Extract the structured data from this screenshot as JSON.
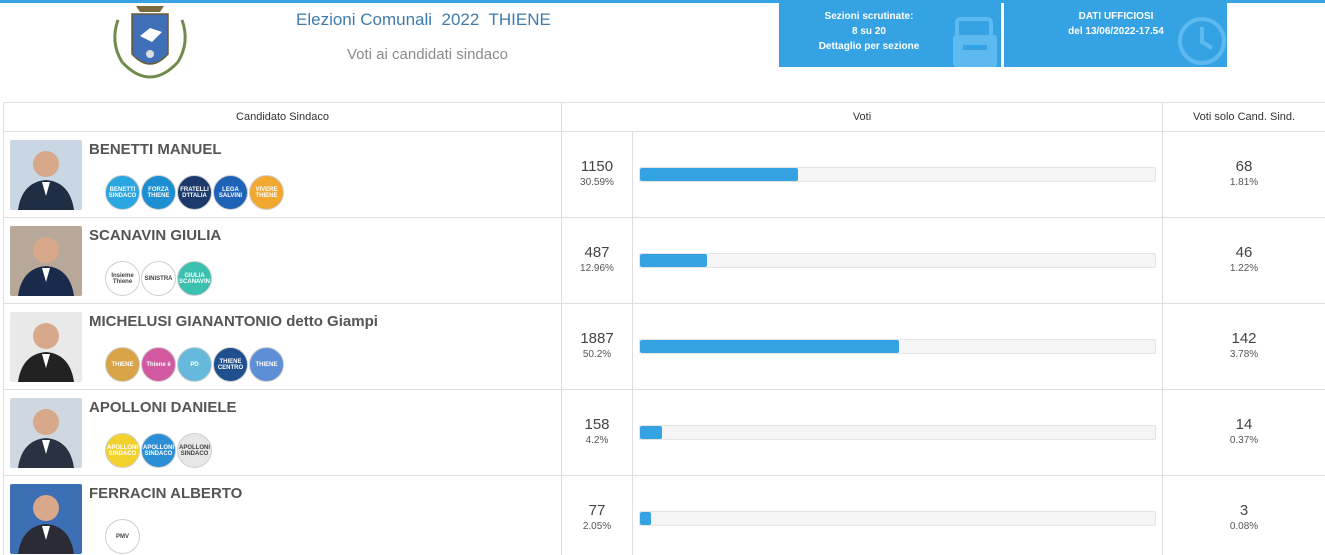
{
  "header": {
    "title": "Elezioni Comunali  2022  THIENE",
    "subtitle": "Voti ai candidati sindaco"
  },
  "info_boxes": {
    "sezioni_label": "Sezioni scrutinate:",
    "sezioni_value": "8 su 20",
    "sezioni_link": "Dettaglio per sezione",
    "dati_label": "DATI UFFICIOSI",
    "dati_value": "del 13/06/2022-17.54"
  },
  "colors": {
    "accent": "#35a3e3",
    "title": "#3f7cad"
  },
  "table": {
    "headers": [
      "Candidato Sindaco",
      "Voti",
      "Voti solo Cand. Sind."
    ],
    "rows": [
      {
        "name": "BENETTI MANUEL",
        "votes": "1150",
        "pct": "30.59%",
        "fraction": 0.3059,
        "solo_votes": "68",
        "solo_pct": "1.81%",
        "photo_bg": "#c9d6e3",
        "suit": "#1f2d45",
        "logos": [
          {
            "text": "BENETTI SINDACO",
            "bg": "#2aa6e0"
          },
          {
            "text": "FORZA THIENE",
            "bg": "#1d8fd0"
          },
          {
            "text": "FRATELLI D'ITALIA",
            "bg": "#1b3a6b"
          },
          {
            "text": "LEGA SALVINI",
            "bg": "#1e63b8"
          },
          {
            "text": "VIVERE THIENE",
            "bg": "#f0a830"
          }
        ]
      },
      {
        "name": "SCANAVIN GIULIA",
        "votes": "487",
        "pct": "12.96%",
        "fraction": 0.1296,
        "solo_votes": "46",
        "solo_pct": "1.22%",
        "photo_bg": "#b8a89a",
        "suit": "#1a2a4a",
        "logos": [
          {
            "text": "Insieme Thiene",
            "bg": "#ffffff"
          },
          {
            "text": "SINISTRA",
            "bg": "#ffffff"
          },
          {
            "text": "GIULIA SCANAVIN",
            "bg": "#3cc0b0"
          }
        ]
      },
      {
        "name": "MICHELUSI GIANANTONIO detto Giampi",
        "votes": "1887",
        "pct": "50.2%",
        "fraction": 0.502,
        "solo_votes": "142",
        "solo_pct": "3.78%",
        "photo_bg": "#e9e9e9",
        "suit": "#222222",
        "logos": [
          {
            "text": "THIENE",
            "bg": "#d9a347"
          },
          {
            "text": "Thiene è",
            "bg": "#d25aa0"
          },
          {
            "text": "PD",
            "bg": "#67b9dc"
          },
          {
            "text": "THIENE CENTRO",
            "bg": "#1f4f8c"
          },
          {
            "text": "THIENE",
            "bg": "#5d8fd6"
          }
        ]
      },
      {
        "name": "APOLLONI DANIELE",
        "votes": "158",
        "pct": "4.2%",
        "fraction": 0.042,
        "solo_votes": "14",
        "solo_pct": "0.37%",
        "photo_bg": "#cfd8e1",
        "suit": "#2a3140",
        "logos": [
          {
            "text": "APOLLONI SINDACO",
            "bg": "#f2d12c"
          },
          {
            "text": "APOLLONI SINDACO",
            "bg": "#2c8fd6"
          },
          {
            "text": "APOLLONI SINDACO",
            "bg": "#e7e7e7"
          }
        ]
      },
      {
        "name": "FERRACIN ALBERTO",
        "votes": "77",
        "pct": "2.05%",
        "fraction": 0.0205,
        "solo_votes": "3",
        "solo_pct": "0.08%",
        "photo_bg": "#3d6fb4",
        "suit": "#2b2b35",
        "logos": [
          {
            "text": "PMV",
            "bg": "#ffffff"
          }
        ]
      }
    ]
  }
}
